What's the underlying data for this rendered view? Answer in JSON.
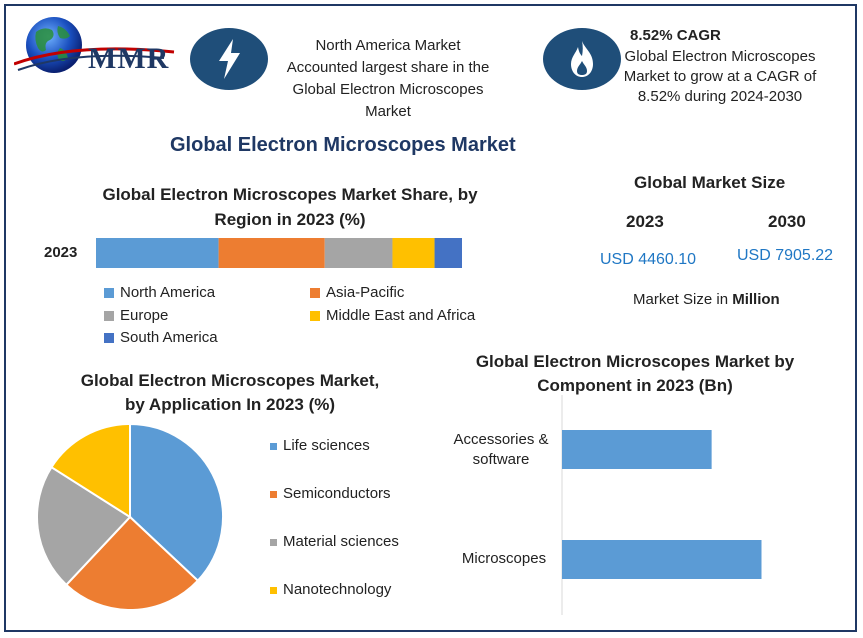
{
  "header": {
    "logo_text": "MMR",
    "callout1": {
      "icon": "lightning-icon",
      "lines": [
        "North America Market",
        "Accounted largest share in the",
        "Global Electron Microscopes",
        "Market"
      ]
    },
    "callout2": {
      "icon": "flame-icon",
      "title": "8.52% CAGR",
      "lines": [
        "Global Electron Microscopes",
        "Market to grow at a CAGR of",
        "8.52% during 2024-2030"
      ]
    }
  },
  "main_title": "Global Electron Microscopes Market",
  "market_size": {
    "title": "Global Market Size",
    "year1": "2023",
    "year2": "2030",
    "value1": "USD 4460.10",
    "value2": "USD 7905.22",
    "note_prefix": "Market Size in ",
    "note_bold": "Million"
  },
  "colors": {
    "north_america": "#5b9bd5",
    "asia_pacific": "#ed7d31",
    "europe": "#a5a5a5",
    "mea": "#ffc000",
    "south_america": "#4472c4",
    "frame": "#1f3864",
    "icon_bg": "#1f4e79",
    "title_blue": "#1f3864"
  },
  "chart_data": [
    {
      "type": "bar",
      "orientation": "horizontal-stacked",
      "title_lines": [
        "Global Electron Microscopes Market Share, by",
        "Region in 2023 (%)"
      ],
      "categories": [
        "2023"
      ],
      "series": [
        {
          "name": "North America",
          "values": [
            33.5
          ]
        },
        {
          "name": "Asia-Pacific",
          "values": [
            29
          ]
        },
        {
          "name": "Europe",
          "values": [
            18.5
          ]
        },
        {
          "name": "Middle East and Africa",
          "values": [
            11.5
          ]
        },
        {
          "name": "South America",
          "values": [
            7.5
          ]
        }
      ],
      "legend": "bottom"
    },
    {
      "type": "pie",
      "title_lines": [
        "Global Electron Microscopes Market,",
        "by Application In 2023 (%)"
      ],
      "labels": [
        "Life sciences",
        "Semiconductors",
        "Material sciences",
        "Nanotechnology"
      ],
      "values": [
        37,
        25,
        22,
        16
      ],
      "legend": "right"
    },
    {
      "type": "bar",
      "orientation": "horizontal",
      "title_lines": [
        "Global Electron Microscopes Market by",
        "Component in 2023 (Bn)"
      ],
      "categories": [
        [
          "Accessories &",
          "software"
        ],
        [
          "Microscopes"
        ]
      ],
      "values": [
        1.8,
        2.4
      ],
      "xlim": [
        0,
        3.2
      ]
    }
  ]
}
